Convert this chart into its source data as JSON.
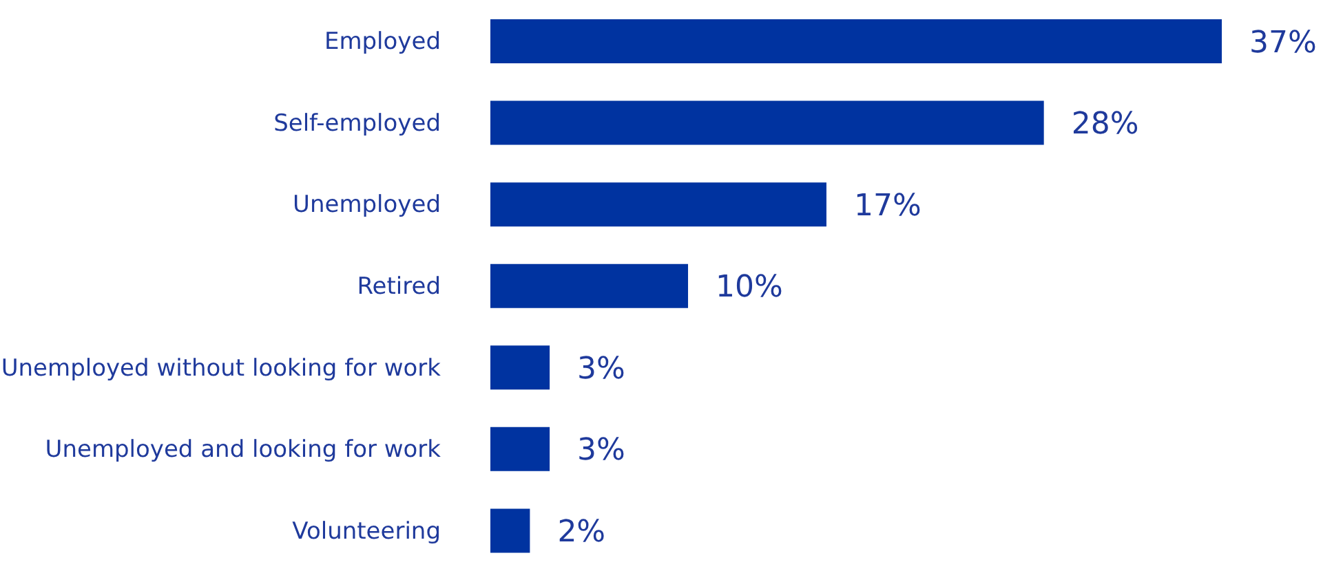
{
  "chart_data": {
    "type": "bar",
    "orientation": "horizontal",
    "categories": [
      "Employed",
      "Self-employed",
      "Unemployed",
      "Retired",
      "Unemployed without looking for work",
      "Unemployed and looking for work",
      "Volunteering"
    ],
    "values": [
      37,
      28,
      17,
      10,
      3,
      3,
      2
    ],
    "value_labels": [
      "37%",
      "28%",
      "17%",
      "10%",
      "3%",
      "3%",
      "2%"
    ],
    "color": "#0033a0",
    "grid": false,
    "legend": false
  }
}
